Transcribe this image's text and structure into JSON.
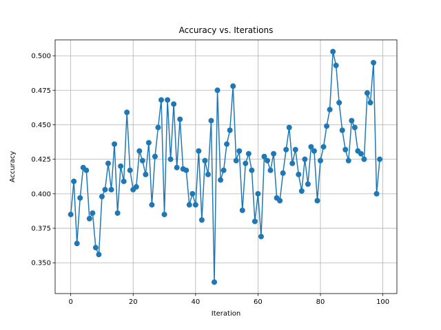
{
  "chart_data": {
    "type": "line",
    "title": "Accuracy vs. Iterations",
    "xlabel": "Iteration",
    "ylabel": "Accuracy",
    "xlim": [
      -5,
      104.5
    ],
    "ylim": [
      0.3277,
      0.5115
    ],
    "xticks": [
      0,
      20,
      40,
      60,
      80,
      100
    ],
    "xtick_labels": [
      "0",
      "20",
      "40",
      "60",
      "80",
      "100"
    ],
    "yticks": [
      0.35,
      0.375,
      0.4,
      0.425,
      0.45,
      0.475,
      0.5
    ],
    "ytick_labels": [
      "0.350",
      "0.375",
      "0.400",
      "0.425",
      "0.450",
      "0.475",
      "0.500"
    ],
    "grid": true,
    "marker": "circle",
    "color": "#1f77b4",
    "series": [
      {
        "x": [
          0,
          1,
          2,
          3,
          4,
          5,
          6,
          7,
          8,
          9,
          10,
          11,
          12,
          13,
          14,
          15,
          16,
          17,
          18,
          19,
          20,
          21,
          22,
          23,
          24,
          25,
          26,
          27,
          28,
          29,
          30,
          31,
          32,
          33,
          34,
          35,
          36,
          37,
          38,
          39,
          40,
          41,
          42,
          43,
          44,
          45,
          46,
          47,
          48,
          49,
          50,
          51,
          52,
          53,
          54,
          55,
          56,
          57,
          58,
          59,
          60,
          61,
          62,
          63,
          64,
          65,
          66,
          67,
          68,
          69,
          70,
          71,
          72,
          73,
          74,
          75,
          76,
          77,
          78,
          79,
          80,
          81,
          82,
          83,
          84,
          85,
          86,
          87,
          88,
          89,
          90,
          91,
          92,
          93,
          94,
          95,
          96,
          97,
          98,
          99
        ],
        "values": [
          0.385,
          0.409,
          0.364,
          0.397,
          0.419,
          0.417,
          0.382,
          0.386,
          0.361,
          0.356,
          0.398,
          0.403,
          0.422,
          0.403,
          0.436,
          0.386,
          0.42,
          0.409,
          0.459,
          0.417,
          0.403,
          0.405,
          0.431,
          0.424,
          0.414,
          0.437,
          0.392,
          0.427,
          0.448,
          0.468,
          0.385,
          0.468,
          0.425,
          0.465,
          0.419,
          0.454,
          0.418,
          0.417,
          0.392,
          0.4,
          0.392,
          0.431,
          0.381,
          0.424,
          0.414,
          0.453,
          0.336,
          0.475,
          0.41,
          0.417,
          0.436,
          0.446,
          0.478,
          0.424,
          0.431,
          0.388,
          0.422,
          0.429,
          0.417,
          0.38,
          0.4,
          0.369,
          0.427,
          0.424,
          0.417,
          0.429,
          0.397,
          0.395,
          0.415,
          0.432,
          0.448,
          0.422,
          0.432,
          0.414,
          0.402,
          0.425,
          0.407,
          0.434,
          0.431,
          0.395,
          0.424,
          0.434,
          0.449,
          0.461,
          0.503,
          0.493,
          0.466,
          0.446,
          0.432,
          0.424,
          0.453,
          0.448,
          0.431,
          0.429,
          0.425,
          0.473,
          0.466,
          0.495,
          0.4,
          0.425
        ]
      }
    ]
  }
}
